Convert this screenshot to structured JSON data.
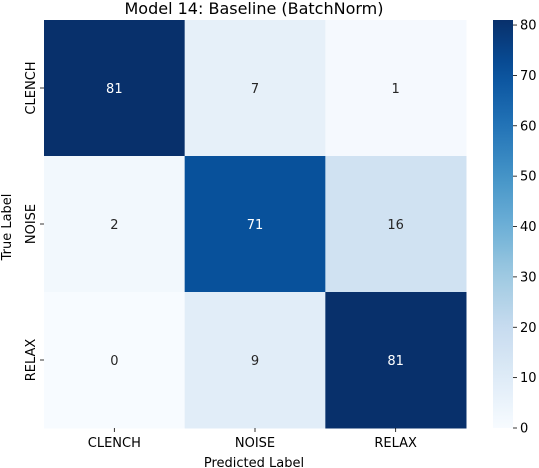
{
  "chart_data": {
    "type": "heatmap",
    "title": "Model 14: Baseline (BatchNorm)",
    "xlabel": "Predicted Label",
    "ylabel": "True Label",
    "x_categories": [
      "CLENCH",
      "NOISE",
      "RELAX"
    ],
    "y_categories": [
      "CLENCH",
      "NOISE",
      "RELAX"
    ],
    "values": [
      [
        81,
        7,
        1
      ],
      [
        2,
        71,
        16
      ],
      [
        0,
        9,
        81
      ]
    ],
    "colorbar": {
      "colormap": "Blues",
      "range": [
        0,
        81
      ],
      "ticks": [
        0,
        10,
        20,
        30,
        40,
        50,
        60,
        70,
        80
      ]
    },
    "grid": false,
    "legend": "right"
  }
}
